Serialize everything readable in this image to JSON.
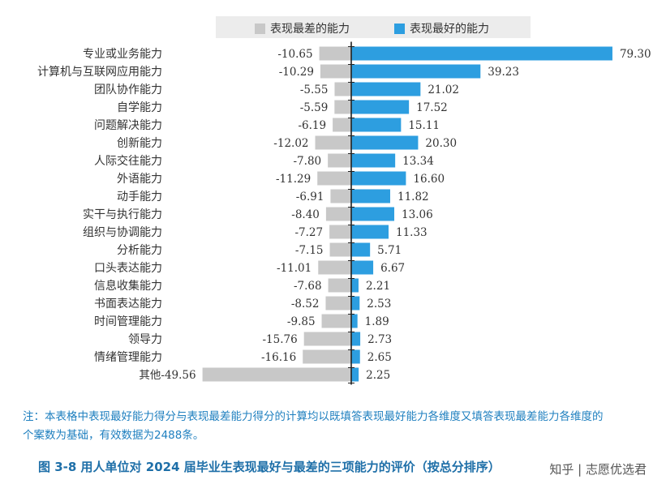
{
  "legend": {
    "worst_label": "表现最差的能力",
    "best_label": "表现最好的能力"
  },
  "colors": {
    "worst": "#c8c8c8",
    "best": "#2d9ee0",
    "axis": "#222222",
    "note_text": "#1e7fbf",
    "caption_text": "#1e6fa8"
  },
  "chart_data": {
    "type": "bar",
    "orientation": "horizontal-diverging",
    "categories": [
      "专业或业务能力",
      "计算机与互联网应用能力",
      "团队协作能力",
      "自学能力",
      "问题解决能力",
      "创新能力",
      "人际交往能力",
      "外语能力",
      "动手能力",
      "实干与执行能力",
      "组织与协调能力",
      "分析能力",
      "口头表达能力",
      "信息收集能力",
      "书面表达能力",
      "时间管理能力",
      "领导力",
      "情绪管理能力",
      "其他"
    ],
    "series": [
      {
        "name": "表现最差的能力",
        "values": [
          -10.65,
          -10.29,
          -5.55,
          -5.59,
          -6.19,
          -12.02,
          -7.8,
          -11.29,
          -6.91,
          -8.4,
          -7.27,
          -7.15,
          -11.01,
          -7.68,
          -8.52,
          -9.85,
          -15.76,
          -16.16,
          -49.56
        ]
      },
      {
        "name": "表现最好的能力",
        "values": [
          79.3,
          39.23,
          21.02,
          17.52,
          15.11,
          20.3,
          13.34,
          16.6,
          11.82,
          13.06,
          11.33,
          5.71,
          6.67,
          2.21,
          2.53,
          1.89,
          2.73,
          2.65,
          2.25
        ]
      }
    ],
    "worst_labels": [
      "-10.65",
      "-10.29",
      "-5.55",
      "-5.59",
      "-6.19",
      "-12.02",
      "-7.80",
      "-11.29",
      "-6.91",
      "-8.40",
      "-7.27",
      "-7.15",
      "-11.01",
      "-7.68",
      "-8.52",
      "-9.85",
      "-15.76",
      "-16.16",
      "其他-49.56"
    ],
    "best_labels": [
      "79.30",
      "39.23",
      "21.02",
      "17.52",
      "15.11",
      "20.30",
      "13.34",
      "16.60",
      "11.82",
      "13.06",
      "11.33",
      "5.71",
      "6.67",
      "2.21",
      "2.53",
      "1.89",
      "2.73",
      "2.65",
      "2.25"
    ],
    "legend_position": "top"
  },
  "note": "注：本表格中表现最好能力得分与表现最差能力得分的计算均以既填答表现最好能力各维度又填答表现最差能力各维度的个案数为基础，有效数据为2488条。",
  "caption": "图 3-8  用人单位对 2024 届毕业生表现最好与最差的三项能力的评价（按总分排序）",
  "watermark": "知乎 | 志愿优选君"
}
